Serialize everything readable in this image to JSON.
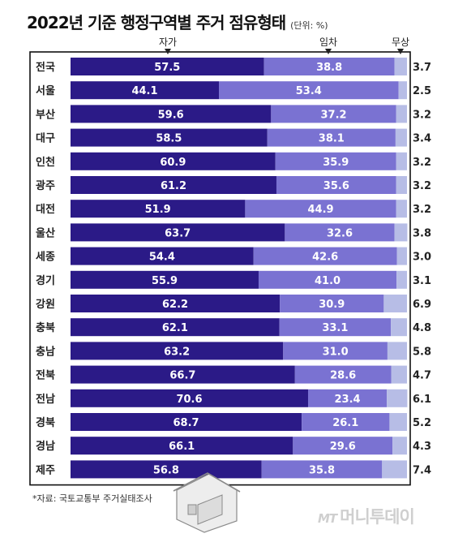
{
  "title": "2022년 기준 행정구역별 주거 점유형태",
  "unit": "(단위: %)",
  "source": "*자료: 국토교통부 주거실태조사",
  "watermark": {
    "mark": "MT",
    "name": "머니투데이"
  },
  "colors": {
    "own": "#2b1a87",
    "rent": "#7a72d2",
    "free": "#b7bde6",
    "frame": "#111111"
  },
  "chart_data": {
    "type": "bar",
    "orientation": "horizontal",
    "stacked": true,
    "categories": [
      "전국",
      "서울",
      "부산",
      "대구",
      "인천",
      "광주",
      "대전",
      "울산",
      "세종",
      "경기",
      "강원",
      "충북",
      "충남",
      "전북",
      "전남",
      "경북",
      "경남",
      "제주"
    ],
    "series": [
      {
        "name": "자가",
        "values": [
          57.5,
          44.1,
          59.6,
          58.5,
          60.9,
          61.2,
          51.9,
          63.7,
          54.4,
          55.9,
          62.2,
          62.1,
          63.2,
          66.7,
          70.6,
          68.7,
          66.1,
          56.8
        ]
      },
      {
        "name": "임차",
        "values": [
          38.8,
          53.4,
          37.2,
          38.1,
          35.9,
          35.6,
          44.9,
          32.6,
          42.6,
          41.0,
          30.9,
          33.1,
          31.0,
          28.6,
          23.4,
          26.1,
          29.6,
          35.8
        ]
      },
      {
        "name": "무상",
        "values": [
          3.7,
          2.5,
          3.2,
          3.4,
          3.2,
          3.2,
          3.2,
          3.8,
          3.0,
          3.1,
          6.9,
          4.8,
          5.8,
          4.7,
          6.1,
          5.2,
          4.3,
          7.4
        ]
      }
    ],
    "xlim": [
      0,
      100
    ],
    "legend": "top, above bars with arrow markers",
    "data_labels": true
  }
}
